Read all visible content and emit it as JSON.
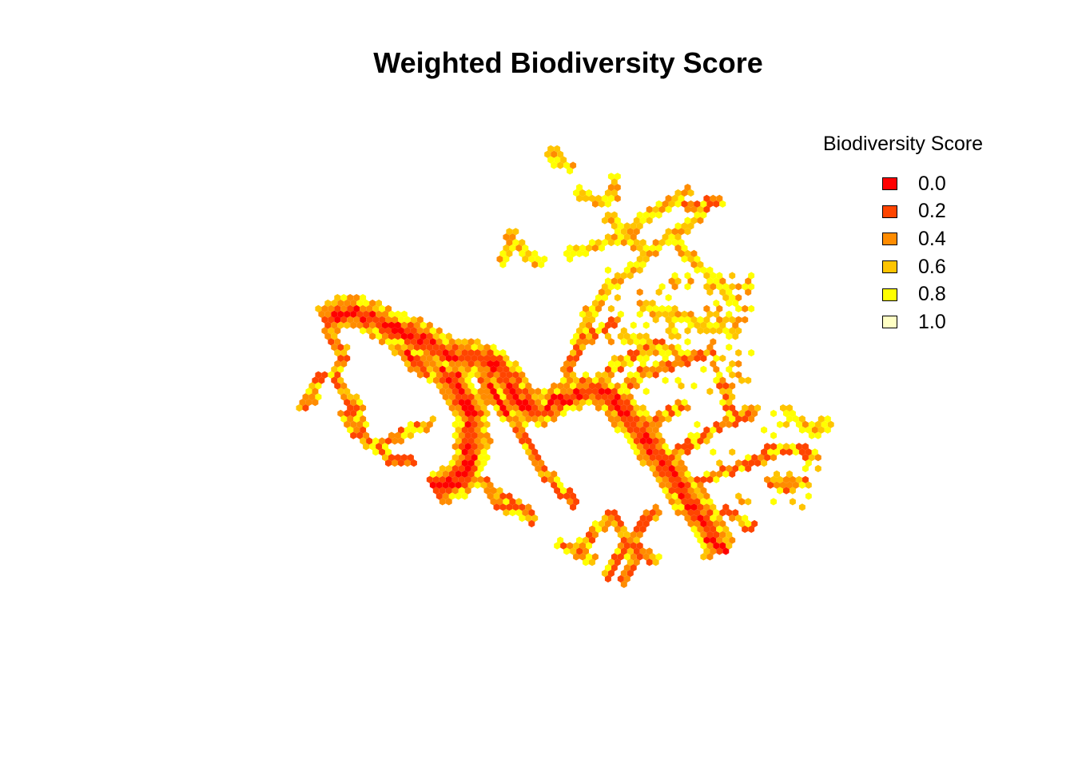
{
  "title": "Weighted Biodiversity Score",
  "legend": {
    "title": "Biodiversity Score",
    "items": [
      {
        "label": "0.0",
        "color": "#FF0000"
      },
      {
        "label": "0.2",
        "color": "#FF4500"
      },
      {
        "label": "0.4",
        "color": "#FF8C00"
      },
      {
        "label": "0.6",
        "color": "#FFC400"
      },
      {
        "label": "0.8",
        "color": "#FFFF00"
      },
      {
        "label": "1.0",
        "color": "#FFFFC4"
      }
    ]
  },
  "map_data": {
    "type": "hexbin-choropleth",
    "value_range": [
      0,
      1
    ],
    "palette": [
      "#FF0000",
      "#FF4500",
      "#FF8C00",
      "#FFC400",
      "#FFFF00",
      "#FFFFC4"
    ]
  }
}
